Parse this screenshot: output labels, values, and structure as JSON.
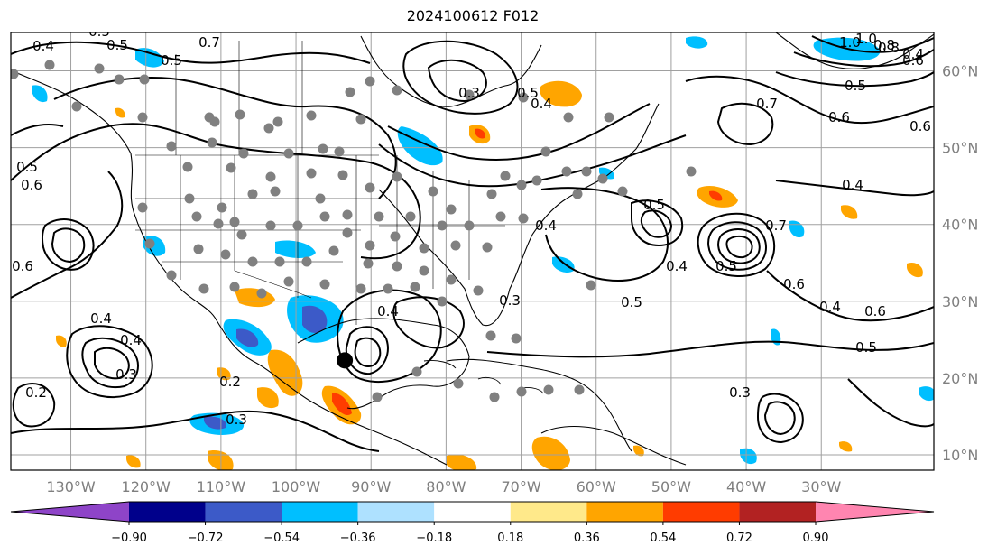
{
  "title": "2024100612 F012",
  "map": {
    "projection": "lat-lon",
    "lon_range": [
      -138,
      -15
    ],
    "lat_range": [
      8,
      65
    ],
    "grid": true,
    "lat_ticks": [
      "60°N",
      "50°N",
      "40°N",
      "30°N",
      "20°N",
      "10°N"
    ],
    "lon_ticks": [
      "130°W",
      "120°W",
      "110°W",
      "100°W",
      "90°W",
      "80°W",
      "70°W",
      "60°W",
      "50°W",
      "40°W",
      "30°W"
    ],
    "gridline_color": "#a0a0a0",
    "tick_color": "#7f7f7f",
    "station_dot_color": "#808080",
    "storm_marker_color": "#000000",
    "storm_location": {
      "lon": -93.5,
      "lat": 22.3
    },
    "contour_labels": [
      "0.7",
      "0.5",
      "0.4",
      "0.3",
      "0.5",
      "1.0",
      "0.8",
      "0.5",
      "0.4",
      "0.6",
      "0.6",
      "0.5",
      "0.4",
      "0.6",
      "0.5",
      "0.6",
      "0.4",
      "0.7",
      "0.4",
      "0.6",
      "0.5",
      "0.3",
      "0.4",
      "0.3",
      "0.2",
      "0.3",
      "0.5",
      "0.6",
      "0.7",
      "0.4",
      "0.5",
      "0.2",
      "0.5",
      "0.4",
      "0.4",
      "1.0",
      "0.8",
      "0.5",
      "0.6",
      "0.4",
      "0.3"
    ]
  },
  "colorbar": {
    "tick_labels": [
      "−0.90",
      "−0.72",
      "−0.54",
      "−0.36",
      "−0.18",
      "0.18",
      "0.36",
      "0.54",
      "0.72",
      "0.90"
    ],
    "bins": [
      {
        "color": "#8e44c8"
      },
      {
        "color": "#00008b"
      },
      {
        "color": "#3c5ac8"
      },
      {
        "color": "#00bfff"
      },
      {
        "color": "#aee1ff"
      },
      {
        "color": "#ffffff"
      },
      {
        "color": "#ffe98a"
      },
      {
        "color": "#ffa500"
      },
      {
        "color": "#ff3c00"
      },
      {
        "color": "#b22222"
      },
      {
        "color": "#ff85b0"
      }
    ]
  }
}
